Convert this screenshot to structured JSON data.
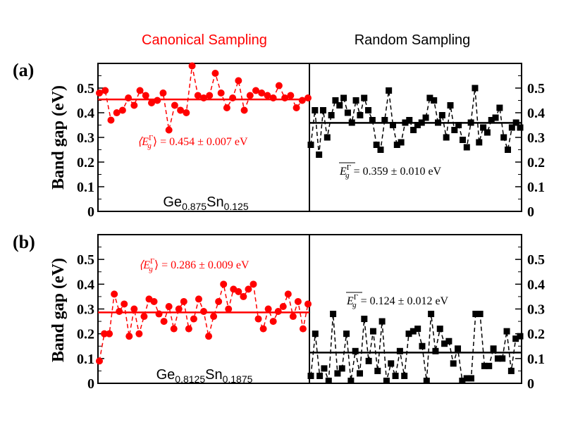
{
  "chart_data": {
    "type": "scatter",
    "column_titles": {
      "left": "Canonical Sampling",
      "right": "Random Sampling"
    },
    "ylabel": "Band gap (eV)",
    "ylim": [
      0,
      0.6
    ],
    "yticks": [
      "0",
      "0.1",
      "0.2",
      "0.3",
      "0.4",
      "0.5"
    ],
    "colors": {
      "canonical": "#ff0000",
      "random": "#000000"
    },
    "panels": [
      {
        "label": "(a)",
        "composition": {
          "a": "Ge",
          "a_sub": "0.875",
          "b": "Sn",
          "b_sub": "0.125"
        },
        "canonical": {
          "mean": 0.454,
          "annotation": {
            "lhs": "⟨E",
            "sup": "Γ",
            "sub": "g",
            "rhs": "⟩ = 0.454 ± 0.007 eV"
          },
          "values": [
            0.48,
            0.49,
            0.37,
            0.4,
            0.41,
            0.46,
            0.43,
            0.49,
            0.47,
            0.44,
            0.45,
            0.48,
            0.33,
            0.43,
            0.41,
            0.4,
            0.59,
            0.47,
            0.46,
            0.47,
            0.56,
            0.48,
            0.42,
            0.46,
            0.53,
            0.41,
            0.47,
            0.49,
            0.48,
            0.47,
            0.46,
            0.51,
            0.46,
            0.47,
            0.42,
            0.45,
            0.46
          ]
        },
        "random": {
          "mean": 0.359,
          "annotation": {
            "lhs": "E",
            "sup": "Γ",
            "sub": "g",
            "rhs": " = 0.359 ± 0.010 eV"
          },
          "values": [
            0.27,
            0.41,
            0.23,
            0.41,
            0.3,
            0.39,
            0.45,
            0.43,
            0.46,
            0.4,
            0.36,
            0.45,
            0.39,
            0.46,
            0.41,
            0.37,
            0.27,
            0.25,
            0.37,
            0.49,
            0.35,
            0.27,
            0.28,
            0.36,
            0.37,
            0.33,
            0.35,
            0.36,
            0.38,
            0.46,
            0.45,
            0.36,
            0.39,
            0.3,
            0.43,
            0.33,
            0.35,
            0.29,
            0.26,
            0.36,
            0.5,
            0.28,
            0.34,
            0.32,
            0.37,
            0.38,
            0.42,
            0.3,
            0.25,
            0.34,
            0.36,
            0.34
          ]
        }
      },
      {
        "label": "(b)",
        "composition": {
          "a": "Ge",
          "a_sub": "0.8125",
          "b": "Sn",
          "b_sub": "0.1875"
        },
        "canonical": {
          "mean": 0.286,
          "annotation": {
            "lhs": "⟨E",
            "sup": "Γ",
            "sub": "g",
            "rhs": "⟩ = 0.286 ± 0.009 eV"
          },
          "values": [
            0.09,
            0.2,
            0.2,
            0.36,
            0.29,
            0.32,
            0.19,
            0.3,
            0.2,
            0.27,
            0.34,
            0.33,
            0.28,
            0.25,
            0.31,
            0.22,
            0.3,
            0.33,
            0.22,
            0.26,
            0.34,
            0.29,
            0.19,
            0.27,
            0.33,
            0.4,
            0.3,
            0.38,
            0.37,
            0.35,
            0.38,
            0.4,
            0.26,
            0.22,
            0.3,
            0.25,
            0.29,
            0.31,
            0.36,
            0.27,
            0.33,
            0.22,
            0.32
          ]
        },
        "random": {
          "mean": 0.124,
          "annotation": {
            "lhs": "E",
            "sup": "Γ",
            "sub": "g",
            "rhs": " = 0.124 ± 0.012 eV"
          },
          "values": [
            0.03,
            0.2,
            0.03,
            0.06,
            0.01,
            0.28,
            0.04,
            0.06,
            0.2,
            0.01,
            0.13,
            0.04,
            0.26,
            0.09,
            0.21,
            0.05,
            0.25,
            0.01,
            0.08,
            0.03,
            0.13,
            0.03,
            0.2,
            0.21,
            0.22,
            0.15,
            0.01,
            0.28,
            0.13,
            0.22,
            0.16,
            0.17,
            0.08,
            0.14,
            0.01,
            0.02,
            0.02,
            0.28,
            0.28,
            0.07,
            0.07,
            0.14,
            0.1,
            0.1,
            0.21,
            0.05,
            0.18,
            0.19
          ]
        }
      }
    ]
  }
}
